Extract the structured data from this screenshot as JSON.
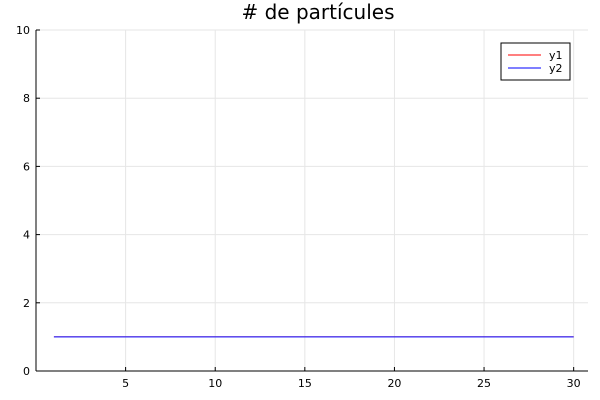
{
  "chart_data": {
    "type": "line",
    "title": "# de partícules",
    "xlabel": "",
    "ylabel": "",
    "xlim": [
      0,
      30.8
    ],
    "ylim": [
      0,
      10
    ],
    "xticks": [
      5,
      10,
      15,
      20,
      25,
      30
    ],
    "yticks": [
      0,
      2,
      4,
      6,
      8,
      10
    ],
    "grid": true,
    "legend_position": "top-right",
    "series": [
      {
        "name": "y1",
        "color": "#ff3333",
        "x": [
          1,
          30
        ],
        "y": [
          1,
          1
        ]
      },
      {
        "name": "y2",
        "color": "#3333ff",
        "x": [
          1,
          30
        ],
        "y": [
          1,
          1
        ]
      }
    ]
  }
}
